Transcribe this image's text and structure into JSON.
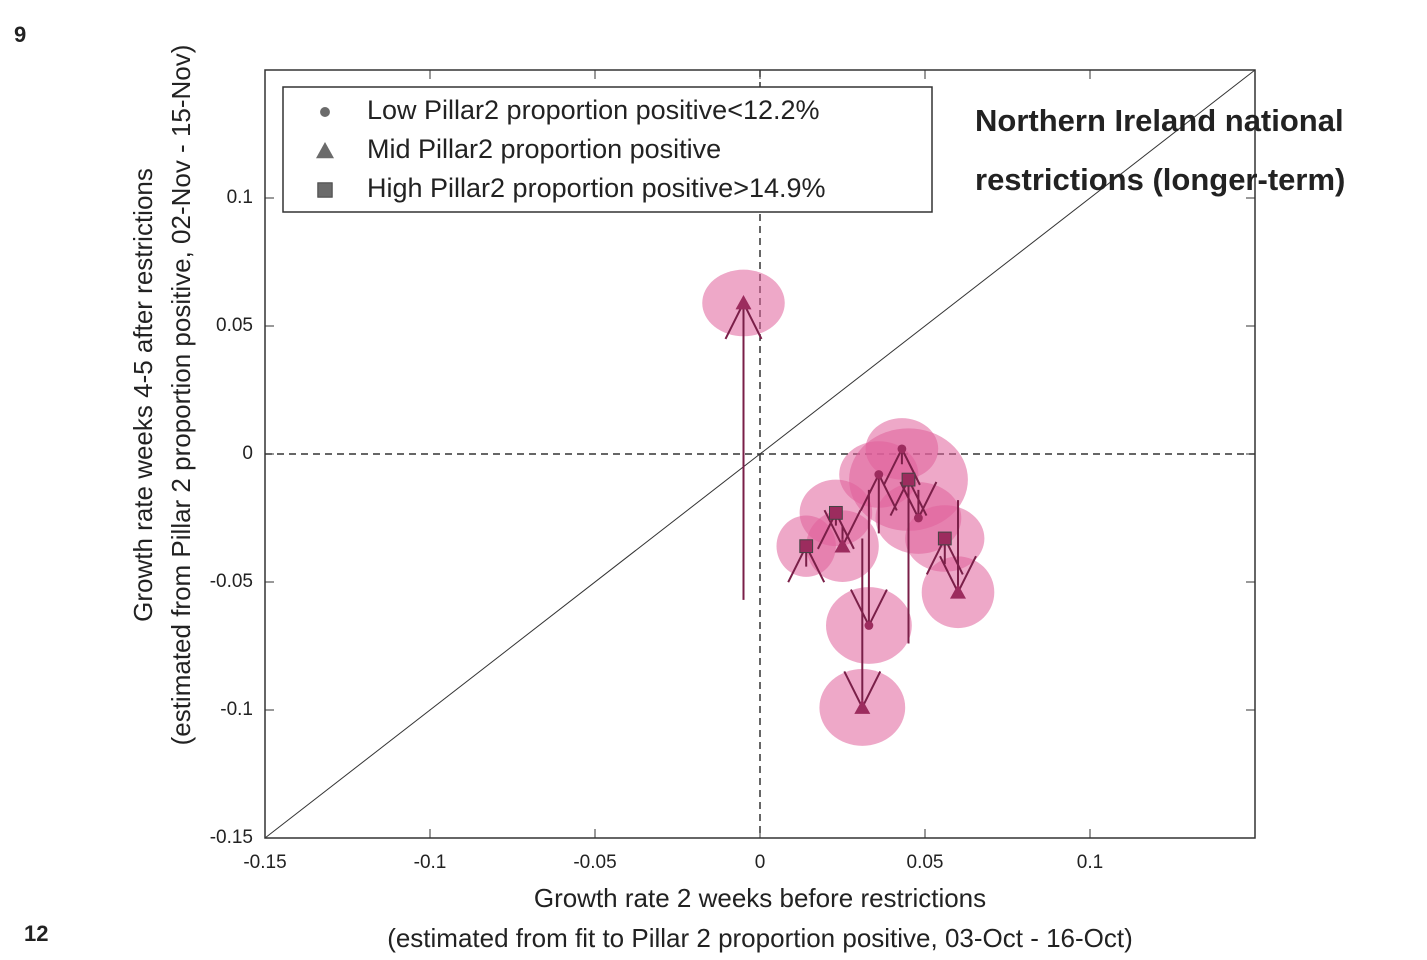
{
  "slide_label": "9",
  "footer_label": "12",
  "chart_data": {
    "type": "scatter",
    "annotation": [
      "Northern Ireland national",
      "restrictions (longer-term)"
    ],
    "annotation_color": "#a3343a",
    "xlabel": [
      "Growth rate 2 weeks before restrictions",
      "(estimated from fit to Pillar 2 proportion positive, 03-Oct - 16-Oct)"
    ],
    "ylabel": [
      "Growth rate weeks 4-5 after restrictions",
      "(estimated from Pillar 2 proportion positive, 02-Nov - 15-Nov)"
    ],
    "xlim": [
      -0.15,
      0.15
    ],
    "ylim": [
      -0.15,
      0.15
    ],
    "xticks": [
      -0.15,
      -0.1,
      -0.05,
      0,
      0.05,
      0.1
    ],
    "yticks": [
      -0.15,
      -0.1,
      -0.05,
      0,
      0.05,
      0.1
    ],
    "marker_color": "#9c2c5e",
    "ellipse_color": "#e0609a",
    "legend_marker_color": "#6b6b6b",
    "series": [
      {
        "name": "Low Pillar2 proportion positive<12.2%",
        "marker": "circle",
        "x": [
          0.036,
          0.043,
          0.048,
          0.033
        ],
        "y": [
          -0.008,
          0.002,
          -0.025,
          -0.067
        ],
        "y_from": [
          -0.031,
          -0.004,
          -0.014,
          -0.014
        ],
        "rx": [
          0.012,
          0.011,
          0.013,
          0.013
        ],
        "ry": [
          0.013,
          0.012,
          0.014,
          0.015
        ]
      },
      {
        "name": "Mid Pillar2 proportion positive",
        "marker": "triangle",
        "x": [
          -0.005,
          0.031,
          0.025,
          0.06
        ],
        "y": [
          0.059,
          -0.099,
          -0.036,
          -0.054
        ],
        "y_from": [
          -0.057,
          -0.033,
          -0.028,
          -0.018
        ],
        "rx": [
          0.0125,
          0.013,
          0.011,
          0.011
        ],
        "ry": [
          0.013,
          0.015,
          0.014,
          0.014
        ]
      },
      {
        "name": "High Pillar2 proportion positive>14.9%",
        "marker": "square",
        "x": [
          0.045,
          0.056,
          0.023,
          0.014
        ],
        "y": [
          -0.01,
          -0.033,
          -0.023,
          -0.036
        ],
        "y_from": [
          -0.074,
          -0.043,
          -0.028,
          -0.044
        ],
        "rx": [
          0.018,
          0.012,
          0.011,
          0.009
        ],
        "ry": [
          0.02,
          0.013,
          0.013,
          0.012
        ]
      }
    ]
  }
}
